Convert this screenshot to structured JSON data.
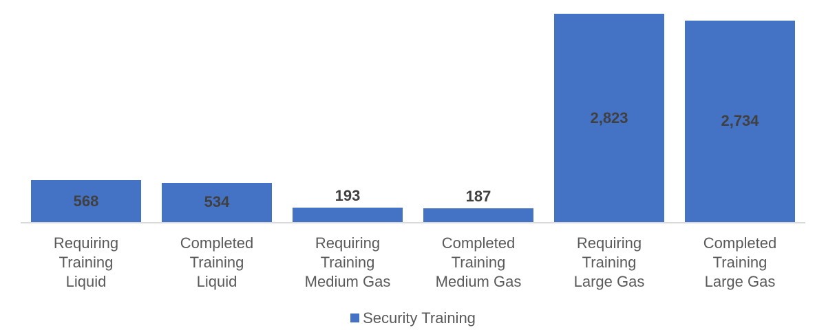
{
  "chart_data": {
    "type": "bar",
    "title": "",
    "xlabel": "",
    "ylabel": "",
    "categories": [
      "Requiring Training Liquid",
      "Completed Training Liquid",
      "Requiring Training Medium Gas",
      "Completed Training Medium Gas",
      "Requiring Training Large Gas",
      "Completed Training Large Gas"
    ],
    "series": [
      {
        "name": "Security Training",
        "color": "#4472C4",
        "values": [
          568,
          534,
          193,
          187,
          2823,
          2734
        ]
      }
    ],
    "data_labels": [
      "568",
      "534",
      "193",
      "187",
      "2,823",
      "2,734"
    ],
    "ylim": [
      0,
      2823
    ],
    "grid": false,
    "legend_position": "bottom"
  },
  "categories_lines": [
    [
      "Requiring",
      "Training",
      "Liquid"
    ],
    [
      "Completed",
      "Training",
      "Liquid"
    ],
    [
      "Requiring",
      "Training",
      "Medium Gas"
    ],
    [
      "Completed",
      "Training",
      "Medium Gas"
    ],
    [
      "Requiring",
      "Training",
      "Large Gas"
    ],
    [
      "Completed",
      "Training",
      "Large Gas"
    ]
  ],
  "legend": {
    "label": "Security Training"
  }
}
